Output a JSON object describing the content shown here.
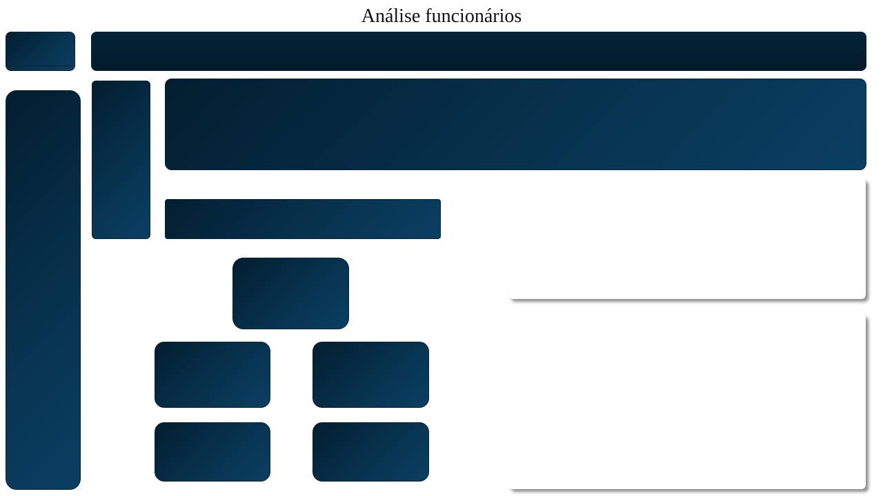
{
  "page": {
    "title": "Análise funcionários"
  },
  "theme": {
    "panel_dark": "#031e30",
    "panel_light": "#0a3f62",
    "panel_border": "#0b2236",
    "background": "#ffffff"
  }
}
